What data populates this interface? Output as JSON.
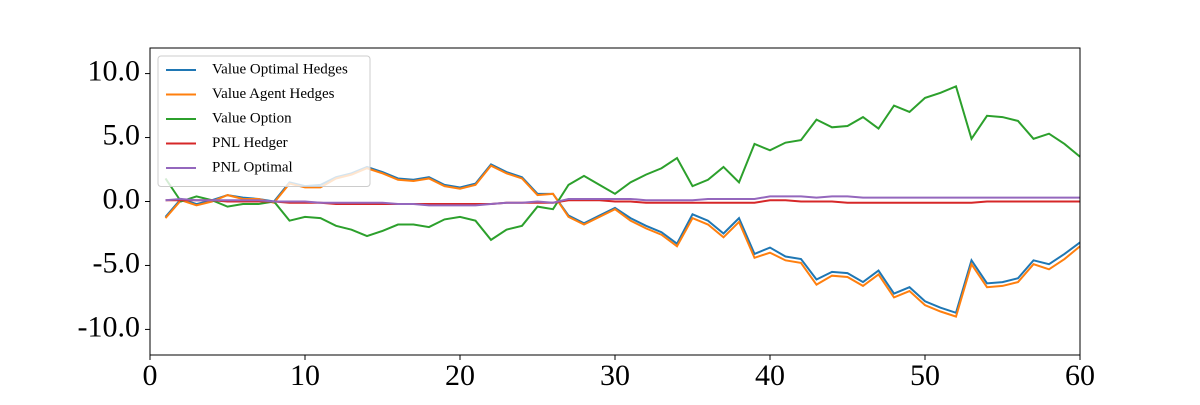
{
  "chart_data": {
    "type": "line",
    "x": [
      1,
      2,
      3,
      4,
      5,
      6,
      7,
      8,
      9,
      10,
      11,
      12,
      13,
      14,
      15,
      16,
      17,
      18,
      19,
      20,
      21,
      22,
      23,
      24,
      25,
      26,
      27,
      28,
      29,
      30,
      31,
      32,
      33,
      34,
      35,
      36,
      37,
      38,
      39,
      40,
      41,
      42,
      43,
      44,
      45,
      46,
      47,
      48,
      49,
      50,
      51,
      52,
      53,
      54,
      55,
      56,
      57,
      58,
      59,
      60
    ],
    "series": [
      {
        "name": "Value Optimal Hedges",
        "color": "#1f77b4",
        "values": [
          -1.2,
          0.2,
          -0.2,
          0.1,
          0.5,
          0.3,
          0.2,
          0.0,
          1.5,
          1.2,
          1.3,
          1.9,
          2.2,
          2.7,
          2.3,
          1.8,
          1.7,
          1.9,
          1.3,
          1.1,
          1.4,
          2.9,
          2.3,
          1.9,
          0.6,
          0.6,
          -1.1,
          -1.7,
          -1.1,
          -0.5,
          -1.3,
          -1.9,
          -2.4,
          -3.3,
          -1.0,
          -1.5,
          -2.5,
          -1.3,
          -4.1,
          -3.6,
          -4.3,
          -4.5,
          -6.1,
          -5.5,
          -5.6,
          -6.3,
          -5.4,
          -7.2,
          -6.7,
          -7.8,
          -8.3,
          -8.7,
          -4.6,
          -6.4,
          -6.3,
          -6.0,
          -4.6,
          -4.9,
          -4.1,
          -3.2
        ]
      },
      {
        "name": "Value Agent Hedges",
        "color": "#ff7f0e",
        "values": [
          -1.3,
          0.1,
          -0.3,
          0.0,
          0.5,
          0.2,
          0.2,
          -0.1,
          1.4,
          1.1,
          1.1,
          1.8,
          2.1,
          2.6,
          2.2,
          1.7,
          1.6,
          1.8,
          1.2,
          1.0,
          1.3,
          2.8,
          2.2,
          1.8,
          0.5,
          0.6,
          -1.2,
          -1.8,
          -1.2,
          -0.6,
          -1.5,
          -2.1,
          -2.6,
          -3.5,
          -1.3,
          -1.8,
          -2.8,
          -1.6,
          -4.4,
          -4.0,
          -4.6,
          -4.8,
          -6.5,
          -5.8,
          -5.9,
          -6.6,
          -5.7,
          -7.5,
          -7.0,
          -8.1,
          -8.6,
          -9.0,
          -4.9,
          -6.7,
          -6.6,
          -6.3,
          -4.9,
          -5.3,
          -4.5,
          -3.5
        ]
      },
      {
        "name": "Value Option",
        "color": "#2ca02c",
        "values": [
          1.8,
          0.0,
          0.4,
          0.1,
          -0.4,
          -0.2,
          -0.2,
          0.0,
          -1.5,
          -1.2,
          -1.3,
          -1.9,
          -2.2,
          -2.7,
          -2.3,
          -1.8,
          -1.8,
          -2.0,
          -1.4,
          -1.2,
          -1.5,
          -3.0,
          -2.2,
          -1.9,
          -0.4,
          -0.6,
          1.3,
          2.0,
          1.3,
          0.6,
          1.5,
          2.1,
          2.6,
          3.4,
          1.2,
          1.7,
          2.7,
          1.5,
          4.5,
          4.0,
          4.6,
          4.8,
          6.4,
          5.8,
          5.9,
          6.6,
          5.7,
          7.5,
          7.0,
          8.1,
          8.5,
          9.0,
          4.9,
          6.7,
          6.6,
          6.3,
          4.9,
          5.3,
          4.5,
          3.5
        ]
      },
      {
        "name": "PNL Hedger",
        "color": "#d62728",
        "values": [
          0.1,
          0.1,
          0.1,
          0.1,
          0.0,
          0.0,
          0.0,
          0.0,
          -0.1,
          -0.1,
          -0.1,
          -0.2,
          -0.2,
          -0.2,
          -0.2,
          -0.2,
          -0.2,
          -0.2,
          -0.2,
          -0.2,
          -0.2,
          -0.2,
          -0.1,
          -0.1,
          -0.1,
          -0.1,
          0.1,
          0.1,
          0.1,
          0.0,
          0.0,
          -0.1,
          -0.1,
          -0.1,
          -0.1,
          -0.1,
          -0.1,
          -0.1,
          -0.1,
          0.1,
          0.1,
          0.0,
          0.0,
          0.0,
          -0.1,
          -0.1,
          -0.1,
          -0.1,
          -0.1,
          -0.1,
          -0.1,
          -0.1,
          -0.1,
          0.0,
          0.0,
          0.0,
          0.0,
          0.0,
          0.0,
          0.0
        ]
      },
      {
        "name": "PNL Optimal",
        "color": "#9467bd",
        "values": [
          0.1,
          0.2,
          0.1,
          0.1,
          0.1,
          0.1,
          0.1,
          0.0,
          0.0,
          0.0,
          -0.1,
          -0.1,
          -0.1,
          -0.1,
          -0.1,
          -0.2,
          -0.2,
          -0.3,
          -0.3,
          -0.3,
          -0.3,
          -0.2,
          -0.1,
          -0.1,
          0.0,
          -0.1,
          0.2,
          0.2,
          0.2,
          0.2,
          0.2,
          0.1,
          0.1,
          0.1,
          0.1,
          0.2,
          0.2,
          0.2,
          0.2,
          0.4,
          0.4,
          0.4,
          0.3,
          0.4,
          0.4,
          0.3,
          0.3,
          0.3,
          0.3,
          0.3,
          0.3,
          0.3,
          0.3,
          0.3,
          0.3,
          0.3,
          0.3,
          0.3,
          0.3,
          0.3
        ]
      }
    ],
    "xlim": [
      0,
      60
    ],
    "xticks": [
      0,
      10,
      20,
      30,
      40,
      50,
      60
    ],
    "ylim": [
      -12,
      12
    ],
    "yticks": [
      {
        "value": -10,
        "label": "-10.0"
      },
      {
        "value": -5,
        "label": "-5.0"
      },
      {
        "value": 0,
        "label": "0.0"
      },
      {
        "value": 5,
        "label": "5.0"
      },
      {
        "value": 10,
        "label": "10.0"
      }
    ],
    "legend": "upper left",
    "grid": false
  }
}
